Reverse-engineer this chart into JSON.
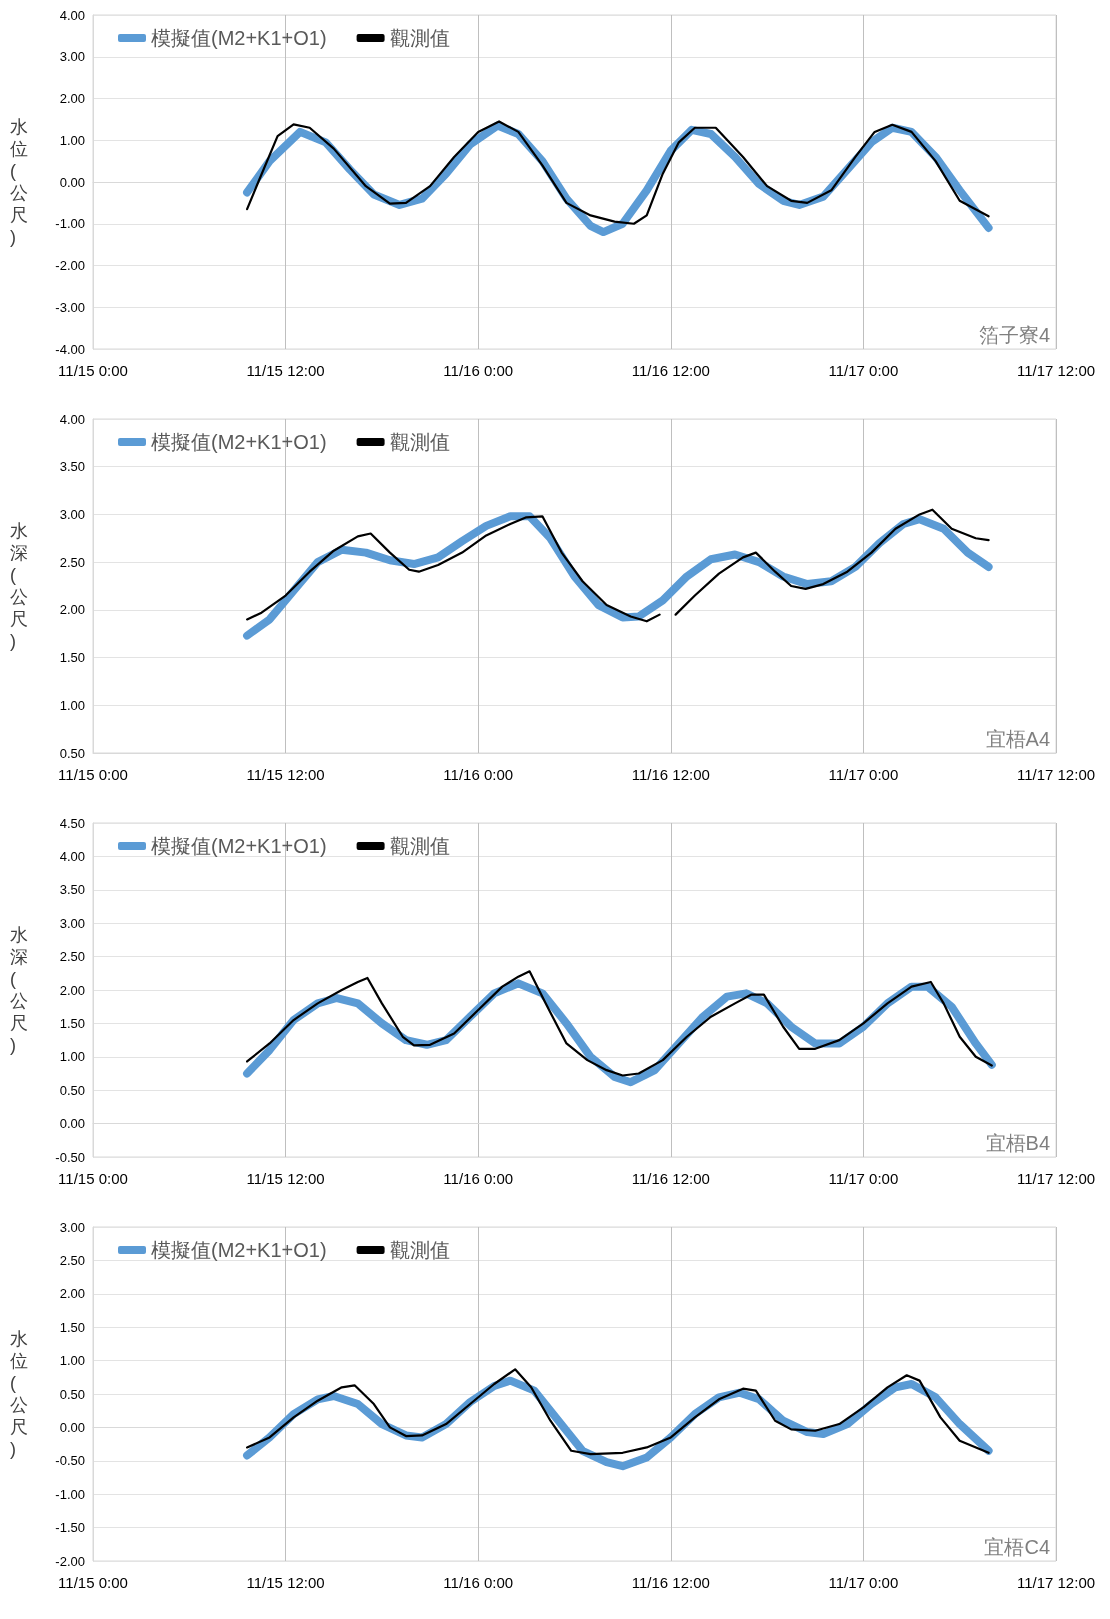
{
  "chart_data": [
    {
      "type": "line",
      "ylabel": "水位(公尺)",
      "annotations": [
        "箔子寮4"
      ],
      "legend": "top left",
      "grid": true,
      "marker": "none",
      "line_style": "solid",
      "xlim": [
        "--11-15T00:00",
        "--11-17T12:00"
      ],
      "xticks": [
        {
          "value": "--11-15T00:00",
          "label": "11/15 0:00"
        },
        {
          "value": "--11-15T12:00",
          "label": "11/15 12:00"
        },
        {
          "value": "--11-16T00:00",
          "label": "11/16 0:00"
        },
        {
          "value": "--11-16T12:00",
          "label": "11/16 12:00"
        },
        {
          "value": "--11-17T00:00",
          "label": "11/17 0:00"
        },
        {
          "value": "--11-17T12:00",
          "label": "11/17 12:00"
        }
      ],
      "ylim": [
        -4,
        4
      ],
      "yticks": [
        {
          "value": -4,
          "label": "-4.00"
        },
        {
          "value": -3,
          "label": "-3.00"
        },
        {
          "value": -2,
          "label": "-2.00"
        },
        {
          "value": -1,
          "label": "-1.00"
        },
        {
          "value": 0,
          "label": "0.00"
        },
        {
          "value": 1,
          "label": "1.00"
        },
        {
          "value": 2,
          "label": "2.00"
        },
        {
          "value": 3,
          "label": "3.00"
        },
        {
          "value": 4,
          "label": "4.00"
        }
      ],
      "series": [
        {
          "name": "模擬值(M2+K1+O1)",
          "color": "#5b9bd5",
          "x": [
            "--11-15T09:36",
            "--11-15T11:00",
            "--11-15T12:54",
            "--11-15T14:30",
            "--11-15T16:00",
            "--11-15T17:30",
            "--11-15T19:06",
            "--11-15T20:30",
            "--11-15T22:00",
            "--11-15T23:30",
            "--11-16T01:12",
            "--11-16T02:30",
            "--11-16T04:00",
            "--11-16T05:30",
            "--11-16T07:00",
            "--11-16T07:48",
            "--11-16T09:00",
            "--11-16T10:30",
            "--11-16T12:00",
            "--11-16T13:18",
            "--11-16T14:30",
            "--11-16T16:00",
            "--11-16T17:30",
            "--11-16T19:00",
            "--11-16T20:00",
            "--11-16T21:30",
            "--11-16T23:00",
            "--11-17T00:30",
            "--11-17T01:48",
            "--11-17T03:00",
            "--11-17T04:30",
            "--11-17T06:00",
            "--11-17T07:48"
          ],
          "values": [
            -0.25,
            0.5,
            1.2,
            0.95,
            0.3,
            -0.3,
            -0.55,
            -0.4,
            0.2,
            0.9,
            1.35,
            1.15,
            0.5,
            -0.4,
            -1.05,
            -1.2,
            -1.0,
            -0.2,
            0.75,
            1.25,
            1.15,
            0.6,
            -0.05,
            -0.45,
            -0.55,
            -0.35,
            0.3,
            0.95,
            1.3,
            1.2,
            0.6,
            -0.2,
            -1.1
          ]
        },
        {
          "name": "觀測值",
          "color": "#000000",
          "x": [
            "--11-15T09:36",
            "--11-15T10:18",
            "--11-15T11:30",
            "--11-15T12:30",
            "--11-15T13:30",
            "--11-15T15:00",
            "--11-15T17:00",
            "--11-15T18:30",
            "--11-15T19:30",
            "--11-15T21:00",
            "--11-15T22:30",
            "--11-16T00:00",
            "--11-16T01:18",
            "--11-16T02:30",
            "--11-16T04:00",
            "--11-16T05:30",
            "--11-16T07:00",
            "--11-16T08:30",
            "--11-16T09:42",
            "--11-16T10:30",
            "--11-16T11:30",
            "--11-16T12:30",
            "--11-16T13:30",
            "--11-16T14:48",
            "--11-16T16:30",
            "--11-16T18:00",
            "--11-16T19:30",
            "--11-16T20:30",
            "--11-16T22:00",
            "--11-16T23:30",
            "--11-17T00:42",
            "--11-17T01:48",
            "--11-17T03:00",
            "--11-17T04:30",
            "--11-17T06:00",
            "--11-17T07:48"
          ],
          "values": [
            -0.65,
            0.0,
            1.1,
            1.38,
            1.3,
            0.8,
            -0.1,
            -0.52,
            -0.5,
            -0.1,
            0.6,
            1.2,
            1.45,
            1.2,
            0.4,
            -0.5,
            -0.8,
            -0.95,
            -1.0,
            -0.8,
            0.2,
            0.95,
            1.3,
            1.3,
            0.6,
            -0.1,
            -0.45,
            -0.5,
            -0.2,
            0.6,
            1.2,
            1.37,
            1.2,
            0.5,
            -0.45,
            -0.82
          ]
        }
      ]
    },
    {
      "type": "line",
      "ylabel": "水深(公尺)",
      "annotations": [
        "宜梧A4"
      ],
      "legend": "top left",
      "grid": true,
      "marker": "none",
      "line_style": "solid",
      "xlim": [
        "--11-15T00:00",
        "--11-17T12:00"
      ],
      "xticks": [
        {
          "value": "--11-15T00:00",
          "label": "11/15 0:00"
        },
        {
          "value": "--11-15T12:00",
          "label": "11/15 12:00"
        },
        {
          "value": "--11-16T00:00",
          "label": "11/16 0:00"
        },
        {
          "value": "--11-16T12:00",
          "label": "11/16 12:00"
        },
        {
          "value": "--11-17T00:00",
          "label": "11/17 0:00"
        },
        {
          "value": "--11-17T12:00",
          "label": "11/17 12:00"
        }
      ],
      "ylim": [
        0.5,
        4
      ],
      "yticks": [
        {
          "value": 0.5,
          "label": "0.50"
        },
        {
          "value": 1,
          "label": "1.00"
        },
        {
          "value": 1.5,
          "label": "1.50"
        },
        {
          "value": 2,
          "label": "2.00"
        },
        {
          "value": 2.5,
          "label": "2.50"
        },
        {
          "value": 3,
          "label": "3.00"
        },
        {
          "value": 3.5,
          "label": "3.50"
        },
        {
          "value": 4,
          "label": "4.00"
        }
      ],
      "series": [
        {
          "name": "模擬值(M2+K1+O1)",
          "color": "#5b9bd5",
          "x": [
            "--11-15T09:36",
            "--11-15T11:00",
            "--11-15T12:30",
            "--11-15T14:00",
            "--11-15T15:30",
            "--11-15T17:00",
            "--11-15T18:30",
            "--11-15T20:00",
            "--11-15T21:30",
            "--11-15T23:00",
            "--11-16T00:30",
            "--11-16T02:00",
            "--11-16T03:12",
            "--11-16T04:30",
            "--11-16T06:00",
            "--11-16T07:30",
            "--11-16T09:00",
            "--11-16T10:00",
            "--11-16T11:30",
            "--11-16T13:00",
            "--11-16T14:30",
            "--11-16T16:00",
            "--11-16T17:30",
            "--11-16T19:00",
            "--11-16T20:30",
            "--11-16T22:00",
            "--11-16T23:30",
            "--11-17T01:00",
            "--11-17T02:30",
            "--11-17T03:30",
            "--11-17T05:00",
            "--11-17T06:30",
            "--11-17T07:48"
          ],
          "values": [
            1.73,
            1.9,
            2.2,
            2.5,
            2.63,
            2.6,
            2.52,
            2.48,
            2.55,
            2.72,
            2.88,
            2.98,
            2.98,
            2.75,
            2.35,
            2.05,
            1.92,
            1.93,
            2.1,
            2.35,
            2.53,
            2.58,
            2.5,
            2.35,
            2.27,
            2.3,
            2.45,
            2.7,
            2.9,
            2.95,
            2.85,
            2.6,
            2.45
          ]
        },
        {
          "name": "觀測值",
          "color": "#000000",
          "x": [
            "--11-15T09:36",
            "--11-15T10:30",
            "--11-15T12:00",
            "--11-15T13:30",
            "--11-15T15:00",
            "--11-15T16:30",
            "--11-15T17:18",
            "--11-15T18:30",
            "--11-15T19:42",
            "--11-15T20:18",
            "--11-15T21:30",
            "--11-15T23:00",
            "--11-16T00:30",
            "--11-16T02:00",
            "--11-16T03:00",
            "--11-16T04:00",
            "--11-16T05:12",
            "--11-16T06:30",
            "--11-16T08:00",
            "--11-16T09:30",
            "--11-16T10:30",
            "--11-16T11:18",
            "--11-16T11:48",
            "--11-16T12:18",
            "--11-16T13:30",
            "--11-16T15:00",
            "--11-16T16:30",
            "--11-16T17:18",
            "--11-16T18:30",
            "--11-16T19:30",
            "--11-16T20:24",
            "--11-16T21:30",
            "--11-16T23:00",
            "--11-17T00:30",
            "--11-17T02:00",
            "--11-17T03:30",
            "--11-17T04:18",
            "--11-17T05:30",
            "--11-17T07:00",
            "--11-17T07:48"
          ],
          "values": [
            1.9,
            1.97,
            2.15,
            2.4,
            2.62,
            2.77,
            2.8,
            2.6,
            2.42,
            2.4,
            2.47,
            2.6,
            2.78,
            2.9,
            2.97,
            2.98,
            2.6,
            2.3,
            2.05,
            1.93,
            1.88,
            1.95,
            null,
            1.95,
            2.15,
            2.38,
            2.55,
            2.6,
            2.4,
            2.25,
            2.22,
            2.27,
            2.4,
            2.6,
            2.85,
            3.0,
            3.05,
            2.85,
            2.75,
            2.73
          ]
        }
      ]
    },
    {
      "type": "line",
      "ylabel": "水深(公尺)",
      "annotations": [
        "宜梧B4"
      ],
      "legend": "top left",
      "grid": true,
      "marker": "none",
      "line_style": "solid",
      "xlim": [
        "--11-15T00:00",
        "--11-17T12:00"
      ],
      "xticks": [
        {
          "value": "--11-15T00:00",
          "label": "11/15 0:00"
        },
        {
          "value": "--11-15T12:00",
          "label": "11/15 12:00"
        },
        {
          "value": "--11-16T00:00",
          "label": "11/16 0:00"
        },
        {
          "value": "--11-16T12:00",
          "label": "11/16 12:00"
        },
        {
          "value": "--11-17T00:00",
          "label": "11/17 0:00"
        },
        {
          "value": "--11-17T12:00",
          "label": "11/17 12:00"
        }
      ],
      "ylim": [
        -0.5,
        4.5
      ],
      "yticks": [
        {
          "value": -0.5,
          "label": "-0.50"
        },
        {
          "value": 0,
          "label": "0.00"
        },
        {
          "value": 0.5,
          "label": "0.50"
        },
        {
          "value": 1,
          "label": "1.00"
        },
        {
          "value": 1.5,
          "label": "1.50"
        },
        {
          "value": 2,
          "label": "2.00"
        },
        {
          "value": 2.5,
          "label": "2.50"
        },
        {
          "value": 3,
          "label": "3.00"
        },
        {
          "value": 3.5,
          "label": "3.50"
        },
        {
          "value": 4,
          "label": "4.00"
        },
        {
          "value": 4.5,
          "label": "4.50"
        }
      ],
      "series": [
        {
          "name": "模擬值(M2+K1+O1)",
          "color": "#5b9bd5",
          "x": [
            "--11-15T09:36",
            "--11-15T11:00",
            "--11-15T12:30",
            "--11-15T14:00",
            "--11-15T15:12",
            "--11-15T16:30",
            "--11-15T18:00",
            "--11-15T19:30",
            "--11-15T20:48",
            "--11-15T22:00",
            "--11-15T23:30",
            "--11-16T01:00",
            "--11-16T02:30",
            "--11-16T04:00",
            "--11-16T05:30",
            "--11-16T07:00",
            "--11-16T08:30",
            "--11-16T09:30",
            "--11-16T11:00",
            "--11-16T12:30",
            "--11-16T14:00",
            "--11-16T15:30",
            "--11-16T16:42",
            "--11-16T18:00",
            "--11-16T19:30",
            "--11-16T21:00",
            "--11-16T22:30",
            "--11-17T00:00",
            "--11-17T01:30",
            "--11-17T03:00",
            "--11-17T04:00",
            "--11-17T05:30",
            "--11-17T07:00",
            "--11-17T08:00"
          ],
          "values": [
            0.75,
            1.1,
            1.55,
            1.8,
            1.88,
            1.8,
            1.5,
            1.25,
            1.18,
            1.25,
            1.6,
            1.95,
            2.1,
            1.95,
            1.5,
            1.0,
            0.7,
            0.62,
            0.8,
            1.2,
            1.6,
            1.9,
            1.95,
            1.8,
            1.45,
            1.2,
            1.2,
            1.45,
            1.8,
            2.05,
            2.05,
            1.75,
            1.2,
            0.88
          ]
        },
        {
          "name": "觀測值",
          "color": "#000000",
          "x": [
            "--11-15T09:36",
            "--11-15T11:00",
            "--11-15T12:30",
            "--11-15T14:00",
            "--11-15T15:30",
            "--11-15T16:30",
            "--11-15T17:06",
            "--11-15T18:00",
            "--11-15T19:18",
            "--11-15T20:00",
            "--11-15T21:00",
            "--11-15T22:30",
            "--11-16T00:00",
            "--11-16T01:30",
            "--11-16T02:30",
            "--11-16T03:12",
            "--11-16T04:12",
            "--11-16T05:30",
            "--11-16T06:48",
            "--11-16T08:00",
            "--11-16T09:00",
            "--11-16T10:00",
            "--11-16T11:30",
            "--11-16T13:00",
            "--11-16T14:30",
            "--11-16T16:00",
            "--11-16T17:00",
            "--11-16T17:48",
            "--11-16T19:00",
            "--11-16T20:00",
            "--11-16T21:00",
            "--11-16T22:30",
            "--11-17T00:00",
            "--11-17T01:30",
            "--11-17T03:00",
            "--11-17T04:12",
            "--11-17T05:00",
            "--11-17T06:00",
            "--11-17T07:00",
            "--11-17T08:00"
          ],
          "values": [
            0.93,
            1.2,
            1.55,
            1.8,
            2.0,
            2.12,
            2.18,
            1.8,
            1.3,
            1.17,
            1.18,
            1.35,
            1.7,
            2.05,
            2.2,
            2.28,
            1.8,
            1.2,
            0.95,
            0.8,
            0.72,
            0.75,
            0.95,
            1.3,
            1.6,
            1.8,
            1.93,
            1.93,
            1.45,
            1.12,
            1.12,
            1.25,
            1.5,
            1.8,
            2.05,
            2.12,
            1.8,
            1.3,
            1.0,
            0.87
          ]
        }
      ]
    },
    {
      "type": "line",
      "ylabel": "水位(公尺)",
      "annotations": [
        "宜梧C4"
      ],
      "legend": "top left",
      "grid": true,
      "marker": "none",
      "line_style": "solid",
      "xlim": [
        "--11-15T00:00",
        "--11-17T12:00"
      ],
      "xticks": [
        {
          "value": "--11-15T00:00",
          "label": "11/15 0:00"
        },
        {
          "value": "--11-15T12:00",
          "label": "11/15 12:00"
        },
        {
          "value": "--11-16T00:00",
          "label": "11/16 0:00"
        },
        {
          "value": "--11-16T12:00",
          "label": "11/16 12:00"
        },
        {
          "value": "--11-17T00:00",
          "label": "11/17 0:00"
        },
        {
          "value": "--11-17T12:00",
          "label": "11/17 12:00"
        }
      ],
      "ylim": [
        -2,
        3
      ],
      "yticks": [
        {
          "value": -2,
          "label": "-2.00"
        },
        {
          "value": -1.5,
          "label": "-1.50"
        },
        {
          "value": -1,
          "label": "-1.00"
        },
        {
          "value": -0.5,
          "label": "-0.50"
        },
        {
          "value": 0,
          "label": "0.00"
        },
        {
          "value": 0.5,
          "label": "0.50"
        },
        {
          "value": 1,
          "label": "1.00"
        },
        {
          "value": 1.5,
          "label": "1.50"
        },
        {
          "value": 2,
          "label": "2.00"
        },
        {
          "value": 2.5,
          "label": "2.50"
        },
        {
          "value": 3,
          "label": "3.00"
        }
      ],
      "series": [
        {
          "name": "模擬值(M2+K1+O1)",
          "color": "#5b9bd5",
          "x": [
            "--11-15T09:36",
            "--11-15T11:00",
            "--11-15T12:30",
            "--11-15T14:00",
            "--11-15T15:00",
            "--11-15T16:30",
            "--11-15T18:00",
            "--11-15T19:30",
            "--11-15T20:30",
            "--11-15T22:00",
            "--11-15T23:30",
            "--11-16T01:00",
            "--11-16T02:00",
            "--11-16T03:30",
            "--11-16T05:00",
            "--11-16T06:30",
            "--11-16T08:00",
            "--11-16T09:00",
            "--11-16T10:30",
            "--11-16T12:00",
            "--11-16T13:30",
            "--11-16T15:00",
            "--11-16T16:18",
            "--11-16T17:30",
            "--11-16T19:00",
            "--11-16T20:30",
            "--11-16T21:30",
            "--11-16T23:00",
            "--11-17T00:30",
            "--11-17T02:00",
            "--11-17T03:00",
            "--11-17T04:30",
            "--11-17T06:00",
            "--11-17T07:48"
          ],
          "values": [
            -0.42,
            -0.15,
            0.2,
            0.42,
            0.47,
            0.35,
            0.05,
            -0.12,
            -0.15,
            0.05,
            0.38,
            0.62,
            0.7,
            0.55,
            0.1,
            -0.35,
            -0.52,
            -0.58,
            -0.45,
            -0.15,
            0.2,
            0.45,
            0.52,
            0.42,
            0.1,
            -0.07,
            -0.1,
            0.05,
            0.35,
            0.6,
            0.65,
            0.45,
            0.05,
            -0.35
          ]
        },
        {
          "name": "觀測值",
          "color": "#000000",
          "x": [
            "--11-15T09:36",
            "--11-15T11:00",
            "--11-15T12:30",
            "--11-15T14:00",
            "--11-15T15:30",
            "--11-15T16:18",
            "--11-15T17:30",
            "--11-15T18:30",
            "--11-15T19:30",
            "--11-15T20:30",
            "--11-15T22:00",
            "--11-15T23:30",
            "--11-16T01:00",
            "--11-16T02:18",
            "--11-16T03:18",
            "--11-16T04:30",
            "--11-16T05:48",
            "--11-16T07:00",
            "--11-16T09:00",
            "--11-16T10:30",
            "--11-16T12:00",
            "--11-16T13:30",
            "--11-16T15:00",
            "--11-16T16:30",
            "--11-16T17:18",
            "--11-16T18:30",
            "--11-16T19:30",
            "--11-16T21:00",
            "--11-16T22:30",
            "--11-17T00:00",
            "--11-17T01:30",
            "--11-17T02:42",
            "--11-17T03:30",
            "--11-17T04:48",
            "--11-17T06:00",
            "--11-17T07:48"
          ],
          "values": [
            -0.3,
            -0.15,
            0.15,
            0.4,
            0.6,
            0.63,
            0.35,
            0.0,
            -0.13,
            -0.12,
            0.05,
            0.35,
            0.65,
            0.87,
            0.6,
            0.1,
            -0.35,
            -0.4,
            -0.38,
            -0.3,
            -0.15,
            0.15,
            0.42,
            0.58,
            0.55,
            0.1,
            -0.03,
            -0.05,
            0.05,
            0.3,
            0.6,
            0.78,
            0.7,
            0.15,
            -0.2,
            -0.38
          ]
        }
      ]
    }
  ]
}
